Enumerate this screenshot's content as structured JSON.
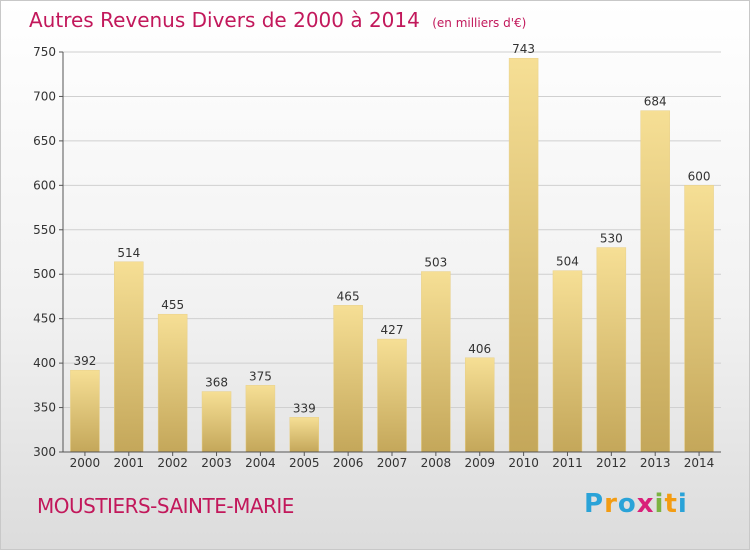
{
  "header": {
    "title": "Autres Revenus Divers de 2000 à 2014",
    "unit": "(en milliers d'€)"
  },
  "footer": {
    "location": "MOUSTIERS-SAINTE-MARIE",
    "logo_letters": [
      {
        "char": "P",
        "color": "#2aa3d8"
      },
      {
        "char": "r",
        "color": "#f39c12"
      },
      {
        "char": "o",
        "color": "#2aa3d8"
      },
      {
        "char": "x",
        "color": "#d9207a"
      },
      {
        "char": "i",
        "color": "#7cb342"
      },
      {
        "char": "t",
        "color": "#f39c12"
      },
      {
        "char": "i",
        "color": "#2aa3d8"
      }
    ]
  },
  "colors": {
    "title": "#c2185b",
    "bar_top": "#f6df95",
    "bar_bottom": "#c4a75a",
    "grid": "#d0d0d0",
    "axis": "#555555"
  },
  "chart_data": {
    "type": "bar",
    "title": "Autres Revenus Divers de 2000 à 2014",
    "xlabel": "",
    "ylabel": "",
    "categories": [
      "2000",
      "2001",
      "2002",
      "2003",
      "2004",
      "2005",
      "2006",
      "2007",
      "2008",
      "2009",
      "2010",
      "2011",
      "2012",
      "2013",
      "2014"
    ],
    "values": [
      392,
      514,
      455,
      368,
      375,
      339,
      465,
      427,
      503,
      406,
      743,
      504,
      530,
      684,
      600
    ],
    "ylim": [
      300,
      750
    ],
    "yticks": [
      300,
      350,
      400,
      450,
      500,
      550,
      600,
      650,
      700,
      750
    ],
    "grid": true
  }
}
